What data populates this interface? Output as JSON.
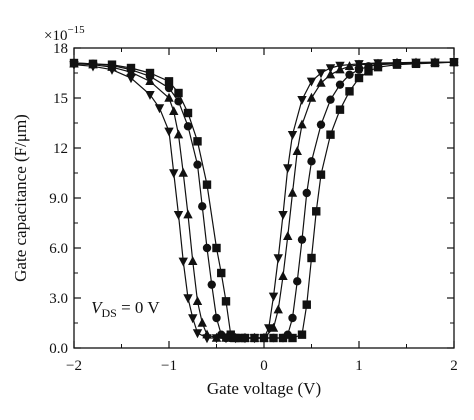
{
  "chart_data": {
    "type": "line",
    "title": "",
    "xlabel": "Gate voltage (V)",
    "ylabel": "Gate capacitance (F/μm)",
    "xlim": [
      -2,
      2
    ],
    "ylim": [
      0,
      18
    ],
    "x_ticks": [
      -2,
      -1,
      0,
      1,
      2
    ],
    "x_tick_labels": [
      "−2",
      "−1",
      "0",
      "1",
      "2"
    ],
    "y_ticks": [
      0,
      3,
      6,
      9,
      12,
      15,
      18
    ],
    "y_tick_labels": [
      "0.0",
      "3.0",
      "6.0",
      "9.0",
      "12",
      "15",
      "18"
    ],
    "y_multiplier": {
      "base": "×10",
      "exponent": "−15"
    },
    "annotation": {
      "var": "V",
      "sub": "DS",
      "rest": " = 0 V"
    },
    "grid": false,
    "legend": "none",
    "colors": {
      "ink": "#111111"
    },
    "series": [
      {
        "marker": "square",
        "x": [
          -2.0,
          -1.8,
          -1.6,
          -1.4,
          -1.2,
          -1.0,
          -0.9,
          -0.8,
          -0.7,
          -0.6,
          -0.5,
          -0.45,
          -0.4,
          -0.35,
          -0.3,
          -0.25,
          -0.2,
          -0.1,
          0.0,
          0.1,
          0.2,
          0.3,
          0.4,
          0.45,
          0.5,
          0.55,
          0.6,
          0.7,
          0.8,
          0.9,
          1.0,
          1.1,
          1.2,
          1.4,
          1.6,
          1.8,
          2.0
        ],
        "y": [
          17.1,
          17.05,
          17.0,
          16.8,
          16.5,
          16.0,
          15.3,
          14.1,
          12.4,
          9.8,
          6.0,
          4.5,
          2.8,
          0.8,
          0.6,
          0.6,
          0.6,
          0.6,
          0.6,
          0.6,
          0.6,
          0.6,
          0.8,
          2.6,
          5.4,
          8.2,
          10.4,
          12.8,
          14.3,
          15.4,
          16.2,
          16.6,
          16.85,
          17.0,
          17.05,
          17.1,
          17.15
        ]
      },
      {
        "marker": "circle",
        "x": [
          -2.0,
          -1.8,
          -1.6,
          -1.4,
          -1.2,
          -1.0,
          -0.9,
          -0.8,
          -0.7,
          -0.65,
          -0.6,
          -0.55,
          -0.5,
          -0.45,
          -0.4,
          -0.35,
          -0.3,
          -0.2,
          -0.1,
          0.0,
          0.1,
          0.2,
          0.25,
          0.3,
          0.35,
          0.4,
          0.45,
          0.5,
          0.6,
          0.7,
          0.8,
          0.9,
          1.0,
          1.1,
          1.2,
          1.4,
          1.6,
          1.8,
          2.0
        ],
        "y": [
          17.1,
          17.05,
          16.95,
          16.7,
          16.3,
          15.6,
          14.8,
          13.3,
          11.0,
          8.5,
          6.0,
          3.8,
          1.8,
          0.8,
          0.6,
          0.6,
          0.6,
          0.6,
          0.6,
          0.6,
          0.6,
          0.6,
          0.8,
          1.8,
          4.0,
          6.5,
          9.3,
          11.2,
          13.4,
          14.9,
          15.8,
          16.4,
          16.7,
          16.9,
          17.0,
          17.05,
          17.1,
          17.12,
          17.15
        ]
      },
      {
        "marker": "triangle-up",
        "x": [
          -2.0,
          -1.8,
          -1.6,
          -1.4,
          -1.2,
          -1.0,
          -0.95,
          -0.9,
          -0.85,
          -0.8,
          -0.75,
          -0.7,
          -0.65,
          -0.6,
          -0.5,
          -0.4,
          -0.3,
          -0.2,
          -0.1,
          0.0,
          0.1,
          0.15,
          0.2,
          0.25,
          0.3,
          0.35,
          0.4,
          0.5,
          0.6,
          0.7,
          0.8,
          0.9,
          1.0,
          1.2,
          1.4,
          1.6,
          1.8,
          2.0
        ],
        "y": [
          17.05,
          17.0,
          16.85,
          16.55,
          16.0,
          15.0,
          14.2,
          12.8,
          10.5,
          8.0,
          5.2,
          2.8,
          1.5,
          0.8,
          0.6,
          0.6,
          0.6,
          0.6,
          0.6,
          0.6,
          1.2,
          2.3,
          4.3,
          6.7,
          9.3,
          11.8,
          13.4,
          15.0,
          15.9,
          16.4,
          16.7,
          16.9,
          17.0,
          17.05,
          17.1,
          17.12,
          17.14,
          17.15
        ]
      },
      {
        "marker": "triangle-down",
        "x": [
          -2.0,
          -1.8,
          -1.6,
          -1.4,
          -1.2,
          -1.1,
          -1.0,
          -0.95,
          -0.9,
          -0.85,
          -0.8,
          -0.75,
          -0.7,
          -0.6,
          -0.5,
          -0.4,
          -0.3,
          -0.2,
          -0.1,
          0.0,
          0.05,
          0.1,
          0.15,
          0.2,
          0.25,
          0.3,
          0.4,
          0.5,
          0.6,
          0.7,
          0.8,
          1.0,
          1.2,
          1.4,
          1.6,
          1.8,
          2.0
        ],
        "y": [
          17.0,
          16.9,
          16.7,
          16.2,
          15.2,
          14.4,
          13.0,
          10.5,
          8.0,
          5.2,
          3.0,
          1.8,
          0.9,
          0.6,
          0.6,
          0.6,
          0.6,
          0.6,
          0.6,
          0.6,
          1.2,
          3.1,
          5.4,
          8.0,
          10.8,
          12.8,
          14.9,
          16.0,
          16.5,
          16.8,
          16.95,
          17.05,
          17.1,
          17.12,
          17.14,
          17.15,
          17.15
        ]
      }
    ]
  }
}
